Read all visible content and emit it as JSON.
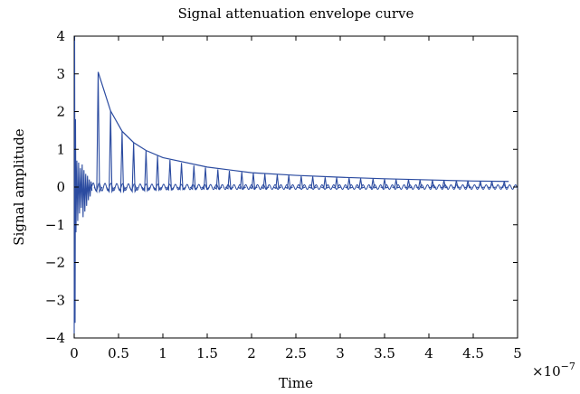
{
  "chart_data": {
    "type": "line",
    "title": "Signal attenuation envelope curve",
    "xlabel": "Time",
    "ylabel": "Signal amplitude",
    "x_exponent_label": "×10",
    "x_exponent_power": "−7",
    "xlim": [
      0,
      5
    ],
    "ylim": [
      -4,
      4
    ],
    "x_ticks": [
      0,
      0.5,
      1,
      1.5,
      2,
      2.5,
      3,
      3.5,
      4,
      4.5,
      5
    ],
    "x_tick_labels": [
      "0",
      "0.5",
      "1",
      "1.5",
      "2",
      "2.5",
      "3",
      "3.5",
      "4",
      "4.5",
      "5"
    ],
    "y_ticks": [
      -4,
      -3,
      -2,
      -1,
      0,
      1,
      2,
      3,
      4
    ],
    "y_tick_labels": [
      "−4",
      "−3",
      "−2",
      "−1",
      "0",
      "1",
      "2",
      "3",
      "4"
    ],
    "grid": false,
    "line_color": "#2B4BA0",
    "series": [
      {
        "values_note": "",
        "pulse_peaks": {
          "x": [
            0.27,
            0.41,
            0.54,
            0.67,
            0.81,
            0.94,
            1.08,
            1.21,
            1.35,
            1.48,
            1.62,
            1.75,
            1.89,
            2.02,
            2.15,
            2.29,
            2.42,
            2.56,
            2.69,
            2.83,
            2.96,
            3.1,
            3.23,
            3.37,
            3.5,
            3.63,
            3.77,
            3.9,
            4.04,
            4.17,
            4.31,
            4.44,
            4.58,
            4.71,
            4.85
          ],
          "y": [
            3.05,
            2.02,
            1.48,
            1.18,
            0.97,
            0.83,
            0.72,
            0.64,
            0.57,
            0.52,
            0.47,
            0.43,
            0.4,
            0.37,
            0.35,
            0.33,
            0.31,
            0.29,
            0.28,
            0.26,
            0.25,
            0.24,
            0.23,
            0.22,
            0.21,
            0.2,
            0.2,
            0.19,
            0.18,
            0.18,
            0.17,
            0.17,
            0.16,
            0.16,
            0.15
          ]
        },
        "envelope": {
          "x": [
            0.27,
            0.41,
            0.54,
            0.67,
            0.81,
            1.0,
            1.5,
            2.0,
            2.5,
            3.0,
            3.5,
            4.0,
            4.5,
            4.9
          ],
          "y": [
            3.05,
            2.02,
            1.48,
            1.18,
            0.97,
            0.78,
            0.53,
            0.38,
            0.31,
            0.26,
            0.22,
            0.19,
            0.16,
            0.15
          ]
        },
        "initial_transient": {
          "x": [
            0.0,
            0.005,
            0.01,
            0.015,
            0.02,
            0.03,
            0.04,
            0.05,
            0.06,
            0.07,
            0.08,
            0.09,
            0.1,
            0.11,
            0.12,
            0.13,
            0.14,
            0.15,
            0.16,
            0.17,
            0.18,
            0.19,
            0.2
          ],
          "y": [
            -4.0,
            4.0,
            -3.6,
            1.8,
            -1.2,
            0.7,
            -0.9,
            0.65,
            -0.7,
            0.5,
            -0.55,
            0.6,
            -0.8,
            0.45,
            -0.65,
            0.35,
            -0.5,
            0.3,
            -0.35,
            0.2,
            -0.25,
            0.15,
            -0.1
          ]
        }
      }
    ]
  }
}
